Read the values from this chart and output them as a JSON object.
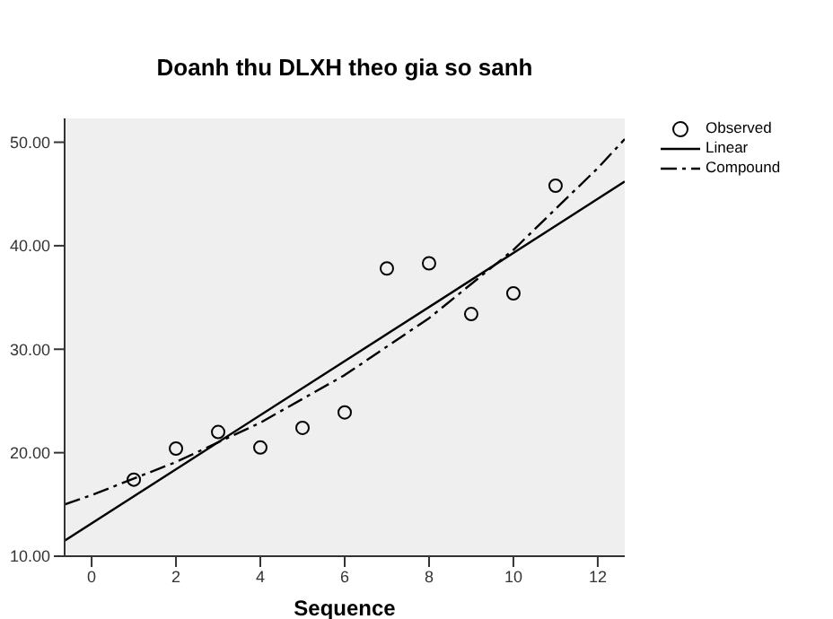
{
  "chart_data": {
    "type": "scatter",
    "title": "Doanh thu DLXH theo gia so sanh",
    "xlabel": "Sequence",
    "xlim": [
      -0.64,
      12.64
    ],
    "xticks": [
      0,
      2,
      4,
      6,
      8,
      10,
      12
    ],
    "ylim": [
      10,
      52.3
    ],
    "yticks": [
      {
        "value": 10,
        "label": "10.00"
      },
      {
        "value": 20,
        "label": "20.00"
      },
      {
        "value": 30,
        "label": "30.00"
      },
      {
        "value": 40,
        "label": "40.00"
      },
      {
        "value": 50,
        "label": "50.00"
      }
    ],
    "legend": "top right",
    "grid": false,
    "series": [
      {
        "name": "Observed",
        "marker": "circle",
        "color": "#000000",
        "x": [
          1,
          2,
          3,
          4,
          5,
          6,
          7,
          8,
          9,
          10,
          11
        ],
        "values": [
          17.4,
          20.4,
          22.0,
          20.5,
          22.4,
          23.9,
          37.8,
          38.3,
          33.4,
          35.4,
          45.8
        ]
      },
      {
        "name": "Linear",
        "type": "line",
        "marker": "none",
        "line_style": "solid",
        "color": "#000000",
        "x": [
          -0.64,
          12.64
        ],
        "values": [
          11.5,
          46.2
        ]
      },
      {
        "name": "Compound",
        "type": "line",
        "marker": "none",
        "line_style": "dashed",
        "color": "#000000",
        "x": [
          -0.64,
          0,
          2,
          4,
          6,
          8,
          10,
          12,
          12.64
        ],
        "values": [
          15.0,
          15.9,
          19.1,
          22.9,
          27.5,
          33.0,
          39.6,
          47.5,
          50.3
        ]
      }
    ]
  }
}
